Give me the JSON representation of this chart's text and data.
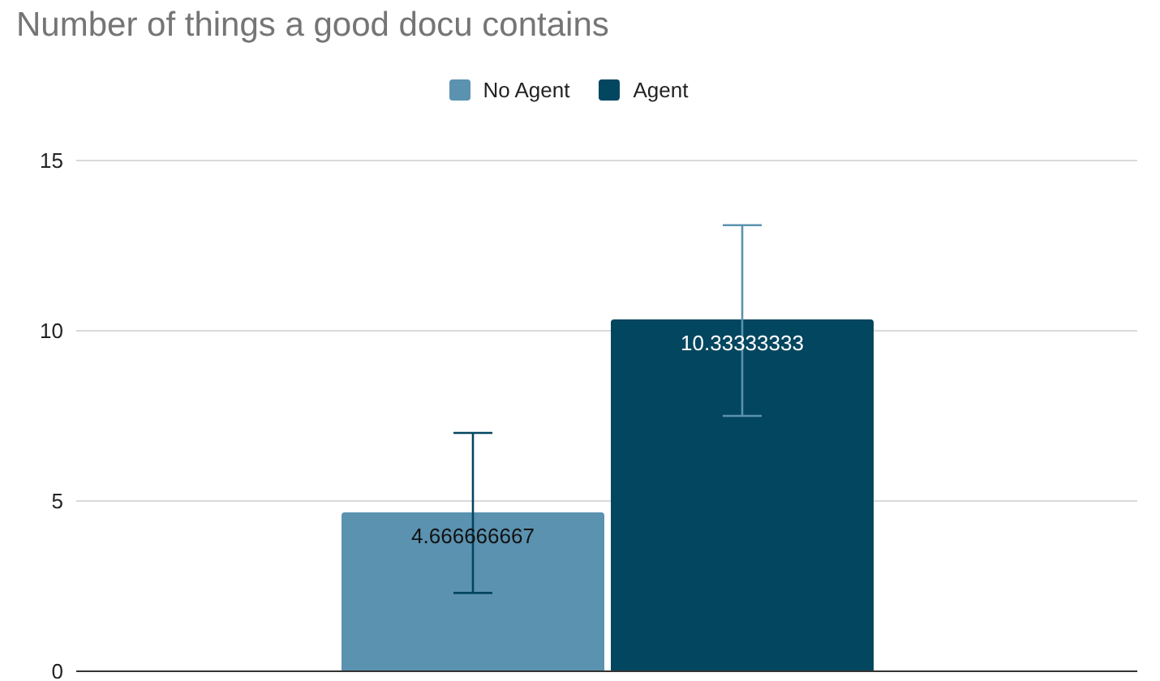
{
  "chart_data": {
    "type": "bar",
    "title": "Number of things a good docu contains",
    "categories": [
      null
    ],
    "series": [
      {
        "name": "No Agent",
        "color": "#5a92b0",
        "values": [
          4.666666667
        ],
        "errors": [
          [
            2.3,
            7.0
          ]
        ]
      },
      {
        "name": "Agent",
        "color": "#03465f",
        "values": [
          10.33333333
        ],
        "errors": [
          [
            7.5,
            13.1
          ]
        ]
      }
    ],
    "ylim": [
      0,
      15
    ],
    "yticks": [
      0,
      5,
      10,
      15
    ],
    "grid": "y",
    "legend": "top",
    "data_labels": true
  }
}
